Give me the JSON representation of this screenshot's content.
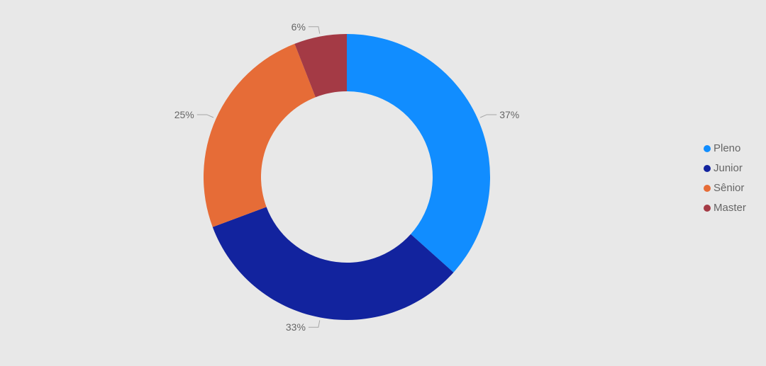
{
  "chart_data": {
    "type": "pie",
    "variant": "donut",
    "title": "",
    "legend_position": "right",
    "series": [
      {
        "name": "Pleno",
        "value": 37,
        "label": "37%",
        "color": "#118dff"
      },
      {
        "name": "Junior",
        "value": 33,
        "label": "33%",
        "color": "#12239e"
      },
      {
        "name": "Sênior",
        "value": 25,
        "label": "25%",
        "color": "#e66c37"
      },
      {
        "name": "Master",
        "value": 6,
        "label": "6%",
        "color": "#a43a45"
      }
    ]
  }
}
